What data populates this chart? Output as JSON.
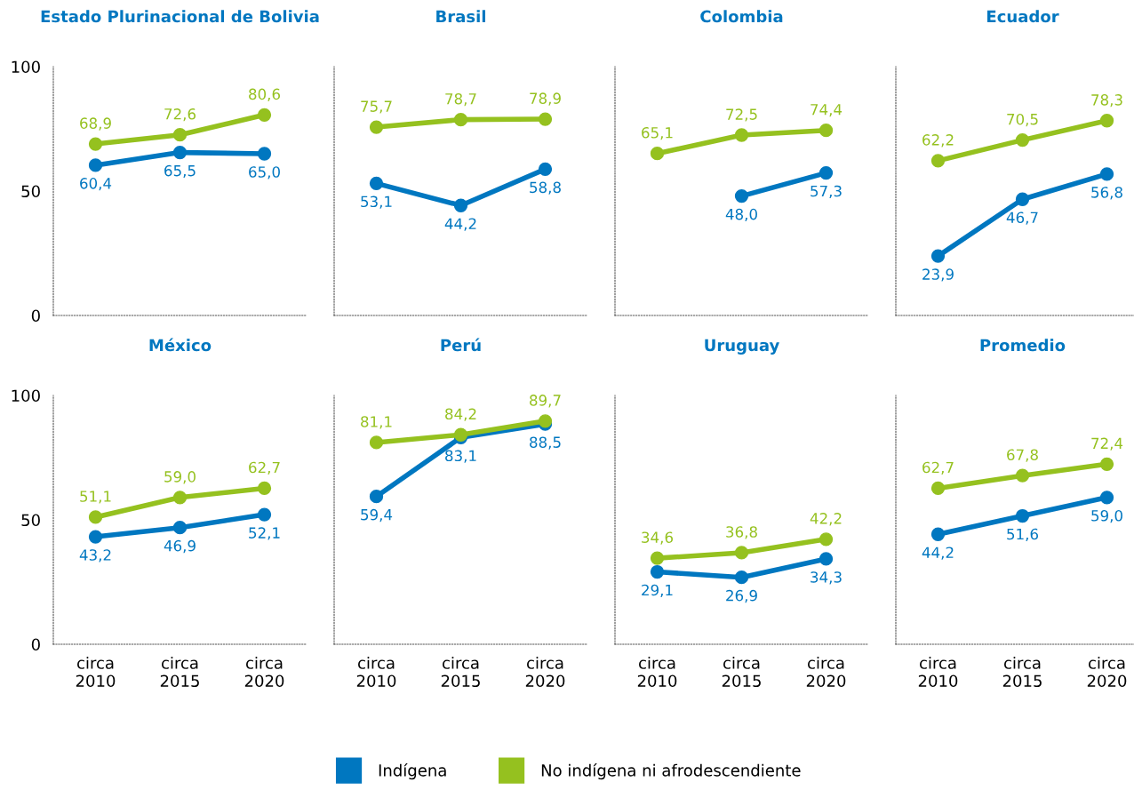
{
  "chart_data": [
    {
      "type": "line",
      "title": "Estado Plurinacional de Bolivia",
      "categories": [
        "circa\n2010",
        "circa\n2015",
        "circa\n2020"
      ],
      "ylim": [
        0,
        100
      ],
      "yticks": [
        0,
        50,
        100
      ],
      "tick_labels": "y",
      "grid": false,
      "marker": "circle",
      "line_style": "solid",
      "legend": "bottom",
      "series": [
        {
          "name": "Indígena",
          "color": "#0077c0",
          "values": [
            60.4,
            65.5,
            65.0
          ],
          "value_labels": [
            "60,4",
            "65,5",
            "65,0"
          ]
        },
        {
          "name": "No indígena ni afrodescendiente",
          "color": "#95c11f",
          "values": [
            68.9,
            72.6,
            80.6
          ],
          "value_labels": [
            "68,9",
            "72,6",
            "80,6"
          ]
        }
      ]
    },
    {
      "type": "line",
      "title": "Brasil",
      "categories": [
        "circa\n2010",
        "circa\n2015",
        "circa\n2020"
      ],
      "ylim": [
        0,
        100
      ],
      "yticks": [
        0,
        50,
        100
      ],
      "tick_labels": false,
      "grid": false,
      "marker": "circle",
      "line_style": "solid",
      "series": [
        {
          "name": "Indígena",
          "color": "#0077c0",
          "values": [
            53.1,
            44.2,
            58.8
          ],
          "value_labels": [
            "53,1",
            "44,2",
            "58,8"
          ]
        },
        {
          "name": "No indígena ni afrodescendiente",
          "color": "#95c11f",
          "values": [
            75.7,
            78.7,
            78.9
          ],
          "value_labels": [
            "75,7",
            "78,7",
            "78,9"
          ]
        }
      ]
    },
    {
      "type": "line",
      "title": "Colombia",
      "categories": [
        "circa\n2010",
        "circa\n2015",
        "circa\n2020"
      ],
      "ylim": [
        0,
        100
      ],
      "yticks": [
        0,
        50,
        100
      ],
      "tick_labels": false,
      "grid": false,
      "marker": "circle",
      "line_style": "solid",
      "series": [
        {
          "name": "Indígena",
          "color": "#0077c0",
          "values": [
            null,
            48.0,
            57.3
          ],
          "value_labels": [
            null,
            "48,0",
            "57,3"
          ]
        },
        {
          "name": "No indígena ni afrodescendiente",
          "color": "#95c11f",
          "values": [
            65.1,
            72.5,
            74.4
          ],
          "value_labels": [
            "65,1",
            "72,5",
            "74,4"
          ]
        }
      ]
    },
    {
      "type": "line",
      "title": "Ecuador",
      "categories": [
        "circa\n2010",
        "circa\n2015",
        "circa\n2020"
      ],
      "ylim": [
        0,
        100
      ],
      "yticks": [
        0,
        50,
        100
      ],
      "tick_labels": false,
      "grid": false,
      "marker": "circle",
      "line_style": "solid",
      "series": [
        {
          "name": "Indígena",
          "color": "#0077c0",
          "values": [
            23.9,
            46.7,
            56.8
          ],
          "value_labels": [
            "23,9",
            "46,7",
            "56,8"
          ]
        },
        {
          "name": "No indígena ni afrodescendiente",
          "color": "#95c11f",
          "values": [
            62.2,
            70.5,
            78.3
          ],
          "value_labels": [
            "62,2",
            "70,5",
            "78,3"
          ]
        }
      ]
    },
    {
      "type": "line",
      "title": "México",
      "categories": [
        "circa\n2010",
        "circa\n2015",
        "circa\n2020"
      ],
      "ylim": [
        0,
        100
      ],
      "yticks": [
        0,
        50,
        100
      ],
      "grid": false,
      "marker": "circle",
      "line_style": "solid",
      "series": [
        {
          "name": "Indígena",
          "color": "#0077c0",
          "values": [
            43.2,
            46.9,
            52.1
          ],
          "value_labels": [
            "43,2",
            "46,9",
            "52,1"
          ]
        },
        {
          "name": "No indígena ni afrodescendiente",
          "color": "#95c11f",
          "values": [
            51.1,
            59.0,
            62.7
          ],
          "value_labels": [
            "51,1",
            "59,0",
            "62,7"
          ]
        }
      ]
    },
    {
      "type": "line",
      "title": "Perú",
      "categories": [
        "circa\n2010",
        "circa\n2015",
        "circa\n2020"
      ],
      "ylim": [
        0,
        100
      ],
      "yticks": [
        0,
        50,
        100
      ],
      "tick_labels": "x",
      "grid": false,
      "marker": "circle",
      "line_style": "solid",
      "series": [
        {
          "name": "Indígena",
          "color": "#0077c0",
          "values": [
            59.4,
            83.1,
            88.5
          ],
          "value_labels": [
            "59,4",
            "83,1",
            "88,5"
          ]
        },
        {
          "name": "No indígena ni afrodescendiente",
          "color": "#95c11f",
          "values": [
            81.1,
            84.2,
            89.7
          ],
          "value_labels": [
            "81,1",
            "84,2",
            "89,7"
          ]
        }
      ]
    },
    {
      "type": "line",
      "title": "Uruguay",
      "categories": [
        "circa\n2010",
        "circa\n2015",
        "circa\n2020"
      ],
      "ylim": [
        0,
        100
      ],
      "yticks": [
        0,
        50,
        100
      ],
      "tick_labels": "x",
      "grid": false,
      "marker": "circle",
      "line_style": "solid",
      "series": [
        {
          "name": "Indígena",
          "color": "#0077c0",
          "values": [
            29.1,
            26.9,
            34.3
          ],
          "value_labels": [
            "29,1",
            "26,9",
            "34,3"
          ]
        },
        {
          "name": "No indígena ni afrodescendiente",
          "color": "#95c11f",
          "values": [
            34.6,
            36.8,
            42.2
          ],
          "value_labels": [
            "34,6",
            "36,8",
            "42,2"
          ]
        }
      ]
    },
    {
      "type": "line",
      "title": "Promedio",
      "categories": [
        "circa\n2010",
        "circa\n2015",
        "circa\n2020"
      ],
      "ylim": [
        0,
        100
      ],
      "yticks": [
        0,
        50,
        100
      ],
      "tick_labels": "x",
      "grid": false,
      "marker": "circle",
      "line_style": "solid",
      "series": [
        {
          "name": "Indígena",
          "color": "#0077c0",
          "values": [
            44.2,
            51.6,
            59.0
          ],
          "value_labels": [
            "44,2",
            "51,6",
            "59,0"
          ]
        },
        {
          "name": "No indígena ni afrodescendiente",
          "color": "#95c11f",
          "values": [
            62.7,
            67.8,
            72.4
          ],
          "value_labels": [
            "62,7",
            "67,8",
            "72,4"
          ]
        }
      ]
    }
  ]
}
